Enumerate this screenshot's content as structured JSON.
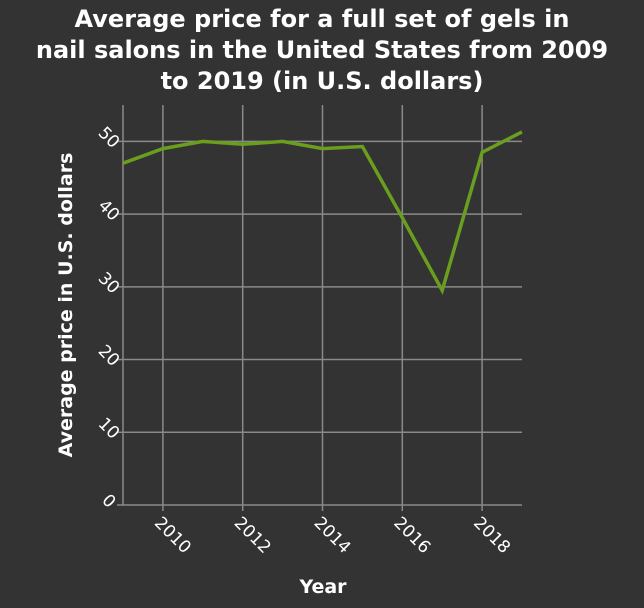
{
  "chart_data": {
    "type": "line",
    "title_lines": [
      "Average price for a full set of gels in",
      "nail salons in the United States from 2009",
      "to 2019 (in U.S. dollars)"
    ],
    "xlabel": "Year",
    "ylabel": "Average price in U.S. dollars",
    "x_ticks": [
      2010,
      2012,
      2014,
      2016,
      2018
    ],
    "y_ticks": [
      0,
      10,
      20,
      30,
      40,
      50
    ],
    "xlim": [
      2009,
      2019
    ],
    "ylim": [
      0,
      55
    ],
    "grid": true,
    "series": [
      {
        "color": "#6a9e1f",
        "x": [
          2009,
          2010,
          2011,
          2012,
          2013,
          2014,
          2015,
          2016,
          2017,
          2018,
          2019
        ],
        "y": [
          47,
          49,
          50,
          49.6,
          50,
          49,
          49.3,
          39.5,
          29.5,
          48.5,
          51.3
        ]
      }
    ],
    "colors": {
      "background": "#333333",
      "grid": "#8a8a8a",
      "text": "#ffffff"
    }
  }
}
